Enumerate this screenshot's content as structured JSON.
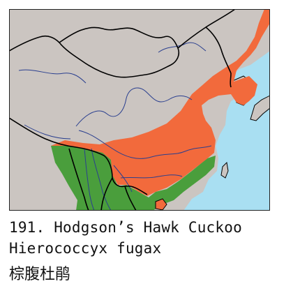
{
  "caption": {
    "common_name": "191. Hodgson’s Hawk Cuckoo",
    "scientific_name": "Hierococcyx fugax",
    "chinese_name": "棕腹杜鹃"
  },
  "map": {
    "colors": {
      "land": "#cbc5c1",
      "sea": "#a9dff2",
      "range_orange": "#f26a3c",
      "range_green": "#4a9e3c",
      "border": "#000000",
      "river": "#2a3f8f",
      "frame": "#222222"
    },
    "legend": [
      {
        "name": "range-orange",
        "color": "#f26a3c"
      },
      {
        "name": "range-green",
        "color": "#4a9e3c"
      }
    ]
  }
}
